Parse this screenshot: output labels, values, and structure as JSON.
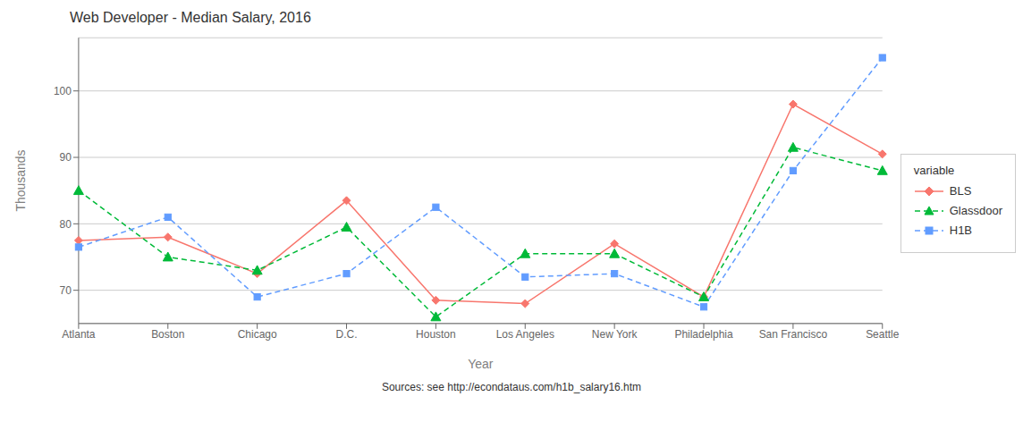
{
  "chart_data": {
    "type": "line",
    "title": "Web Developer - Median Salary, 2016",
    "x_label": "Year",
    "y_label": "Thousands",
    "annotations": [
      "Sources: see http://econdataus.com/h1b_salary16.htm"
    ],
    "legend_title": "variable",
    "categories": [
      "Atlanta",
      "Boston",
      "Chicago",
      "D.C.",
      "Houston",
      "Los Angeles",
      "New York",
      "Philadelphia",
      "San Francisco",
      "Seattle"
    ],
    "series": [
      {
        "name": "BLS",
        "color": "#F8766D",
        "marker": "diamond",
        "line_style": "solid",
        "values": [
          77.5,
          78.0,
          72.5,
          83.5,
          68.5,
          68.0,
          77.0,
          69.0,
          98.0,
          90.5
        ]
      },
      {
        "name": "Glassdoor",
        "color": "#00BA38",
        "marker": "triangle",
        "line_style": "dashed",
        "values": [
          85.0,
          75.0,
          73.0,
          79.5,
          66.0,
          75.5,
          75.5,
          69.0,
          91.5,
          88.0
        ]
      },
      {
        "name": "H1B",
        "color": "#619CFF",
        "marker": "square",
        "line_style": "dashed",
        "values": [
          76.5,
          81.0,
          69.0,
          72.5,
          82.5,
          72.0,
          72.5,
          67.5,
          88.0,
          105.0
        ]
      }
    ],
    "ylim": [
      65,
      108
    ],
    "yticks": [
      70,
      80,
      90,
      100
    ],
    "grid": true,
    "legend": "right"
  }
}
